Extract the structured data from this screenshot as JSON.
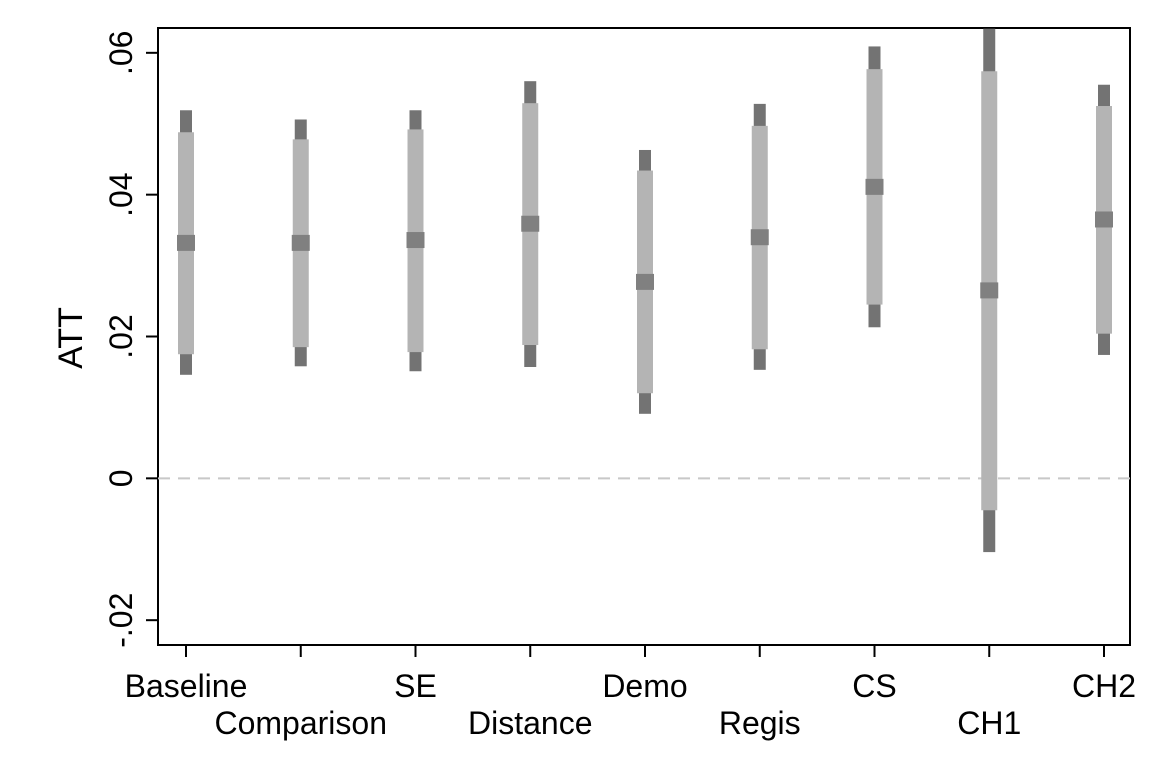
{
  "chart_data": {
    "type": "errorbar",
    "title": "",
    "xlabel": "",
    "ylabel": "ATT",
    "ylim": [
      -0.0235,
      0.0635
    ],
    "yticks": [
      {
        "value": -0.02,
        "label": "-.02"
      },
      {
        "value": 0,
        "label": "0"
      },
      {
        "value": 0.02,
        "label": ".02"
      },
      {
        "value": 0.04,
        "label": ".04"
      },
      {
        "value": 0.06,
        "label": ".06"
      }
    ],
    "reference_line": {
      "value": 0,
      "style": "dashed"
    },
    "grid": false,
    "legend": "none",
    "categories": [
      "Baseline",
      "Comparison",
      "SE",
      "Distance",
      "Demo",
      "Regis",
      "CS",
      "CH1",
      "CH2"
    ],
    "points": [
      {
        "label": "Baseline",
        "estimate": 0.0332,
        "ci90": [
          0.0175,
          0.0488
        ],
        "ci95": [
          0.0146,
          0.0519
        ]
      },
      {
        "label": "Comparison",
        "estimate": 0.0332,
        "ci90": [
          0.0185,
          0.0478
        ],
        "ci95": [
          0.0158,
          0.0506
        ]
      },
      {
        "label": "SE",
        "estimate": 0.0336,
        "ci90": [
          0.0178,
          0.0492
        ],
        "ci95": [
          0.0151,
          0.0519
        ]
      },
      {
        "label": "Distance",
        "estimate": 0.0359,
        "ci90": [
          0.0188,
          0.0529
        ],
        "ci95": [
          0.0157,
          0.056
        ]
      },
      {
        "label": "Demo",
        "estimate": 0.0277,
        "ci90": [
          0.012,
          0.0434
        ],
        "ci95": [
          0.0091,
          0.0463
        ]
      },
      {
        "label": "Regis",
        "estimate": 0.034,
        "ci90": [
          0.0182,
          0.0497
        ],
        "ci95": [
          0.0153,
          0.0528
        ]
      },
      {
        "label": "CS",
        "estimate": 0.0411,
        "ci90": [
          0.0245,
          0.0577
        ],
        "ci95": [
          0.0213,
          0.0609
        ]
      },
      {
        "label": "CH1",
        "estimate": 0.0265,
        "ci90": [
          -0.0045,
          0.0574
        ],
        "ci95": [
          -0.0104,
          0.0634
        ]
      },
      {
        "label": "CH2",
        "estimate": 0.0365,
        "ci90": [
          0.0204,
          0.0525
        ],
        "ci95": [
          0.0174,
          0.0555
        ]
      }
    ],
    "colors": {
      "ci95": "#737373",
      "ci90": "#b4b4b4",
      "estimate": "#808080",
      "reference_line": "#c8c8c8",
      "axis": "#000000"
    }
  }
}
